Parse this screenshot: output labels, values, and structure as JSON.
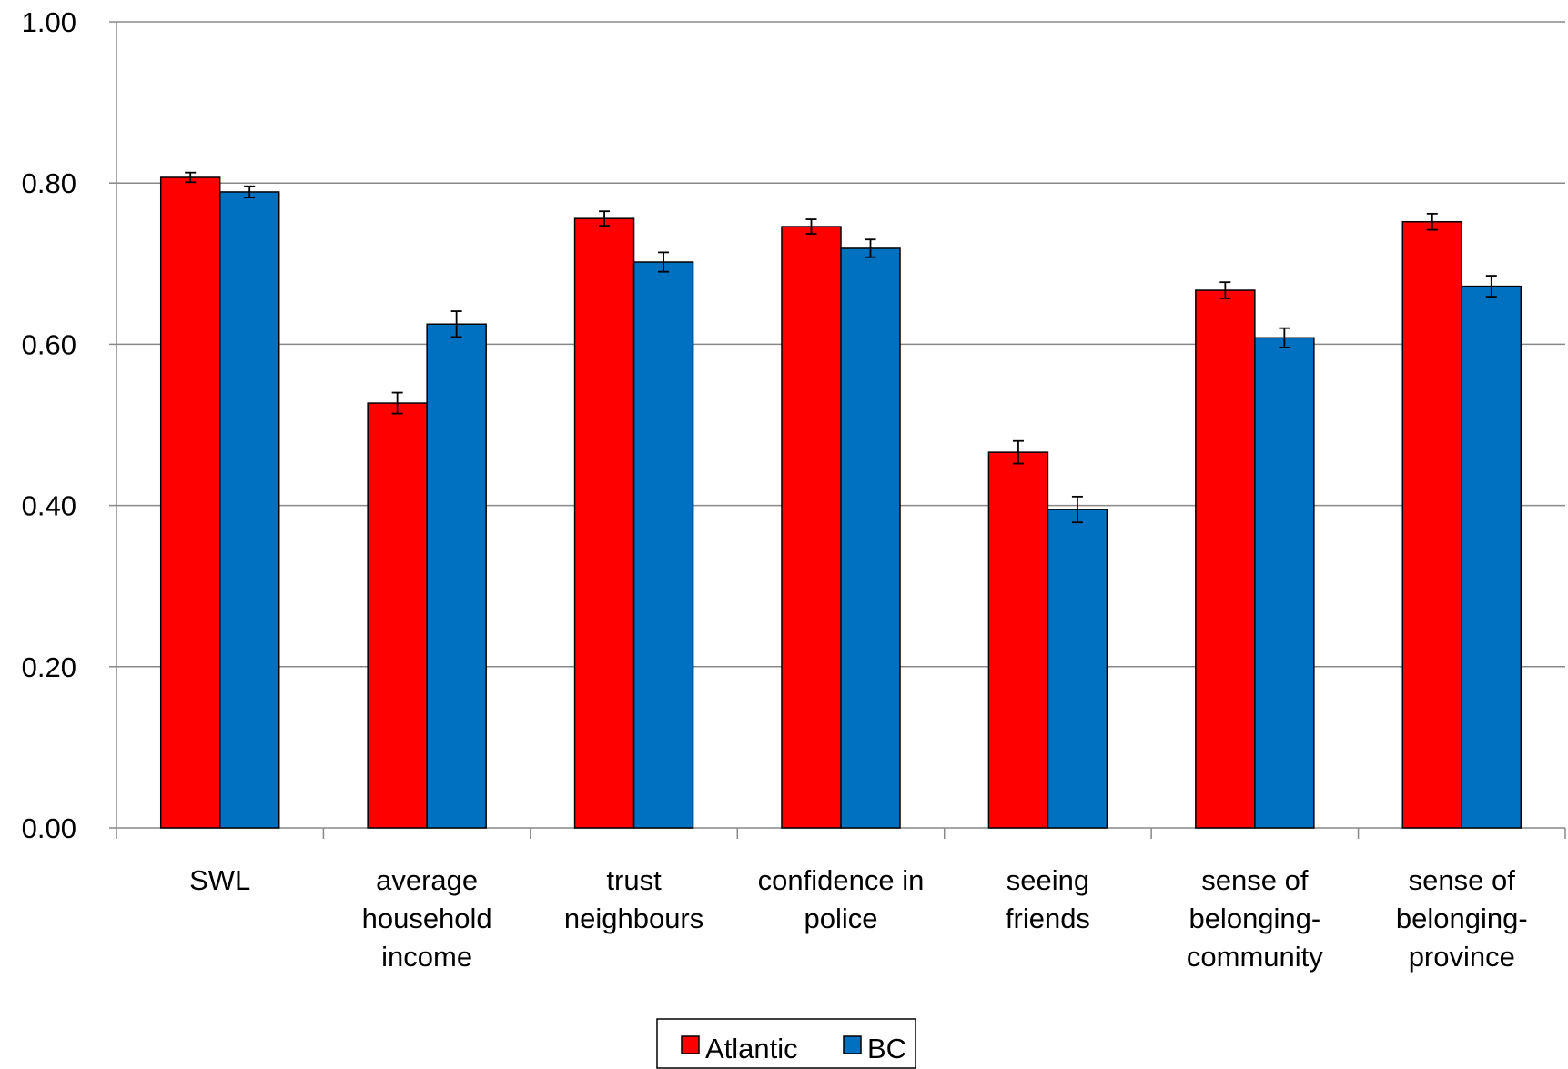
{
  "chart_data": {
    "type": "bar",
    "title": "",
    "xlabel": "",
    "ylabel": "",
    "ylim": [
      0,
      1
    ],
    "yticks": [
      "0.00",
      "0.20",
      "0.40",
      "0.60",
      "0.80",
      "1.00"
    ],
    "categories": [
      [
        "SWL"
      ],
      [
        "average",
        "household",
        "income"
      ],
      [
        "trust",
        "neighbours"
      ],
      [
        "confidence in",
        "police"
      ],
      [
        "seeing",
        "friends"
      ],
      [
        "sense of",
        "belonging-",
        "community"
      ],
      [
        "sense of",
        "belonging-",
        "province"
      ]
    ],
    "series": [
      {
        "name": "Atlantic",
        "color": "#ff0000",
        "values": [
          0.807,
          0.527,
          0.756,
          0.746,
          0.466,
          0.667,
          0.752
        ],
        "errors": [
          0.006,
          0.013,
          0.009,
          0.009,
          0.014,
          0.01,
          0.01
        ]
      },
      {
        "name": "BC",
        "color": "#0070c0",
        "values": [
          0.789,
          0.625,
          0.702,
          0.719,
          0.395,
          0.608,
          0.672
        ],
        "errors": [
          0.007,
          0.016,
          0.012,
          0.011,
          0.016,
          0.012,
          0.013
        ]
      }
    ],
    "grid": true,
    "legend_position": "bottom-center"
  }
}
